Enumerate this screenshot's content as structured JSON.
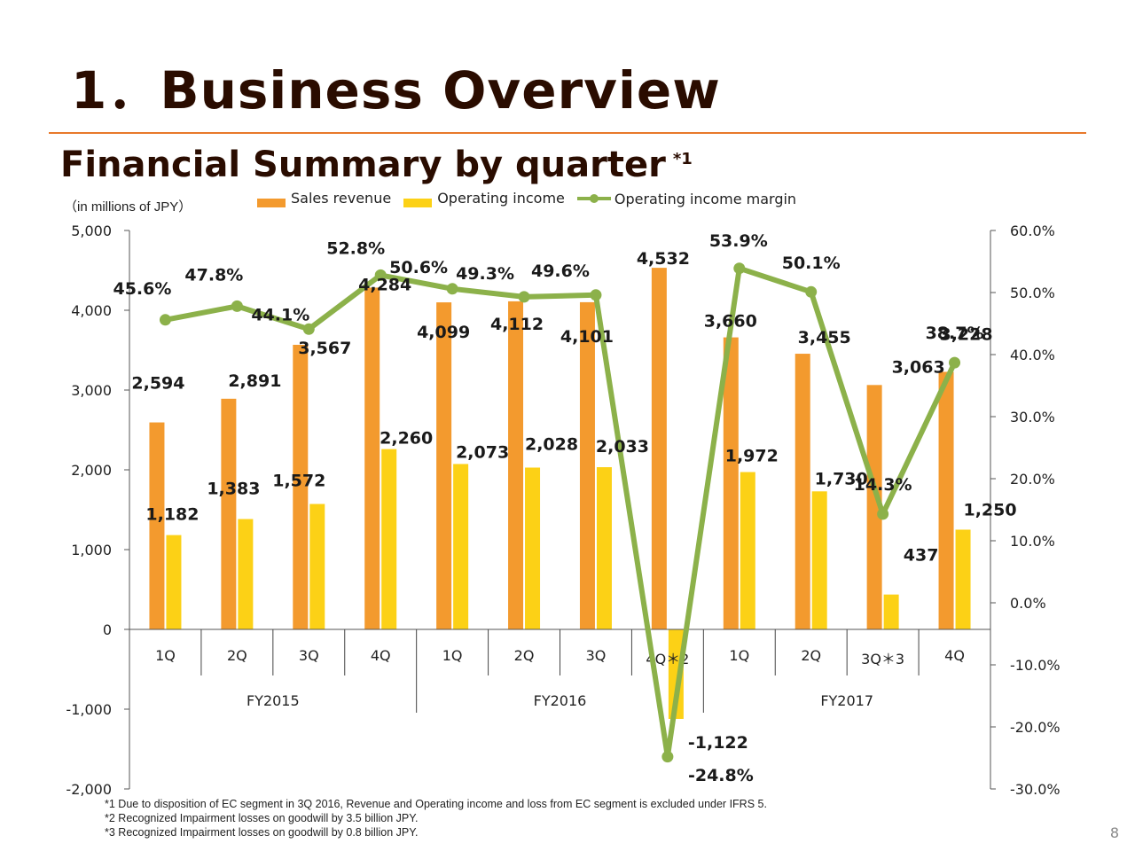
{
  "page": {
    "title": "1．Business Overview",
    "subtitle": "Financial Summary by quarter",
    "subtitle_mark": "*1",
    "unit": "（in millions of JPY）",
    "notes": [
      "*1 Due to disposition of EC segment in 3Q 2016, Revenue and Operating income and loss from EC segment is excluded under IFRS 5.",
      "*2 Recognized Impairment losses on goodwill by 3.5 billion JPY.",
      "*3 Recognized Impairment losses on goodwill by 0.8 billion JPY."
    ],
    "page_number": "8"
  },
  "chart_data": {
    "type": "bar",
    "categories": [
      "1Q",
      "2Q",
      "3Q",
      "4Q",
      "1Q",
      "2Q",
      "3Q",
      "4Q＊2",
      "1Q",
      "2Q",
      "3Q＊3",
      "4Q"
    ],
    "groups": [
      {
        "label": "FY2015",
        "count": 4
      },
      {
        "label": "FY2016",
        "count": 4
      },
      {
        "label": "FY2017",
        "count": 4
      }
    ],
    "series": [
      {
        "name": "Sales revenue",
        "type": "bar",
        "axis": "left",
        "color": "#f39a2e",
        "values": [
          2594,
          2891,
          3567,
          4284,
          4099,
          4112,
          4101,
          4532,
          3660,
          3455,
          3063,
          3228
        ],
        "labels": [
          "2,594",
          "2,891",
          "3,567",
          "4,284",
          "4,099",
          "4,112",
          "4,101",
          "4,532",
          "3,660",
          "3,455",
          "3,063",
          "3,228"
        ]
      },
      {
        "name": "Operating income",
        "type": "bar",
        "axis": "left",
        "color": "#fcd116",
        "values": [
          1182,
          1383,
          1572,
          2260,
          2073,
          2028,
          2033,
          -1122,
          1972,
          1730,
          437,
          1250
        ],
        "labels": [
          "1,182",
          "1,383",
          "1,572",
          "2,260",
          "2,073",
          "2,028",
          "2,033",
          "-1,122",
          "1,972",
          "1,730",
          "437",
          "1,250"
        ]
      },
      {
        "name": "Operating income margin",
        "type": "line",
        "axis": "right",
        "color": "#8cb14a",
        "values": [
          45.6,
          47.8,
          44.1,
          52.8,
          50.6,
          49.3,
          49.6,
          -24.8,
          53.9,
          50.1,
          14.3,
          38.7
        ],
        "labels": [
          "45.6%",
          "47.8%",
          "44.1%",
          "52.8%",
          "50.6%",
          "49.3%",
          "49.6%",
          "-24.8%",
          "53.9%",
          "50.1%",
          "14.3%",
          "38.7%"
        ]
      }
    ],
    "y_left": {
      "min": -2000,
      "max": 5000,
      "step": 1000,
      "ticks": [
        "-2,000",
        "-1,000",
        "0",
        "1,000",
        "2,000",
        "3,000",
        "4,000",
        "5,000"
      ]
    },
    "y_right": {
      "min": -30,
      "max": 60,
      "step": 10,
      "ticks": [
        "-30.0%",
        "-20.0%",
        "-10.0%",
        "0.0%",
        "10.0%",
        "20.0%",
        "30.0%",
        "40.0%",
        "50.0%",
        "60.0%"
      ]
    },
    "legend": "top"
  }
}
